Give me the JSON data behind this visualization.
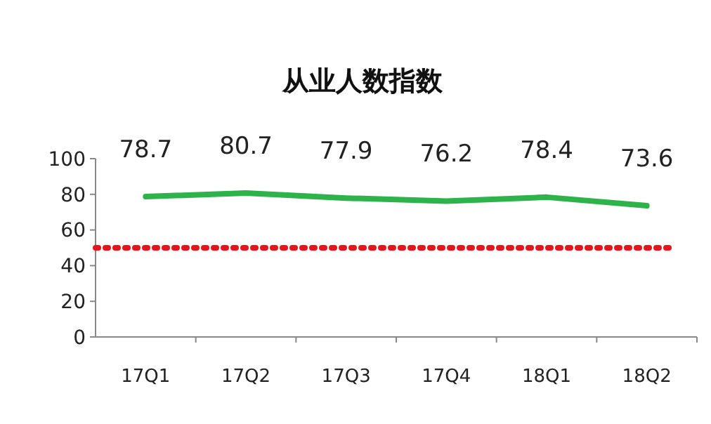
{
  "chart_data": {
    "type": "line",
    "title": "从业人数指数",
    "categories": [
      "17Q1",
      "17Q2",
      "17Q3",
      "17Q4",
      "18Q1",
      "18Q2"
    ],
    "series": [
      {
        "color": "#2db34a",
        "values": [
          78.7,
          80.7,
          77.9,
          76.2,
          78.4,
          73.6
        ]
      }
    ],
    "ylim": [
      0,
      100
    ],
    "yticks": [
      0,
      20,
      40,
      60,
      80,
      100
    ],
    "data_labels": true,
    "marker": "none",
    "line_style": "solid",
    "ref_lines": [
      {
        "axis": "y",
        "value": 50,
        "color": "#e8141c",
        "line_style": "dotted"
      }
    ]
  }
}
